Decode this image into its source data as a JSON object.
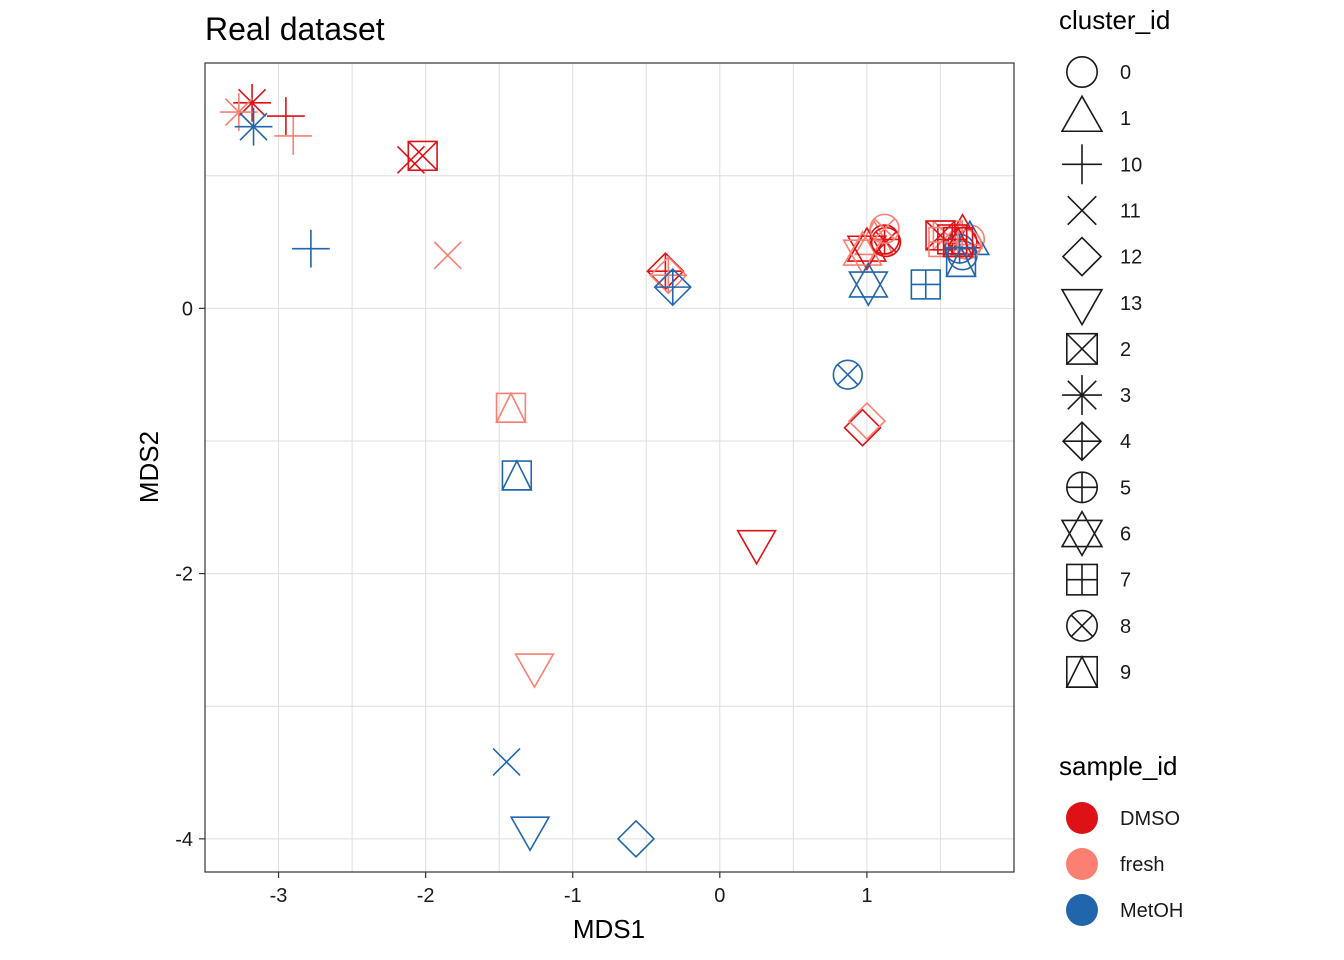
{
  "colors": {
    "DMSO": "#DE1116",
    "fresh": "#FB8072",
    "MetOH": "#2166AC",
    "legend_shape": "#1a1a1a",
    "panel_border": "#333333",
    "grid": "#dedede"
  },
  "chart_data": {
    "type": "scatter",
    "title": "Real dataset",
    "xlabel": "MDS1",
    "ylabel": "MDS2",
    "xlim": [
      -3.5,
      2.0
    ],
    "ylim": [
      -4.25,
      1.85
    ],
    "xticks": [
      -3,
      -2,
      -1,
      0,
      1
    ],
    "yticks": [
      0,
      -2,
      -4
    ],
    "xtick_labels": [
      "-3",
      "-2",
      "-1",
      "0",
      "1"
    ],
    "ytick_labels": [
      "0",
      "-2",
      "-4"
    ],
    "grid": true,
    "legend_shape": {
      "title": "cluster_id",
      "entries": [
        {
          "label": "0",
          "shape": "circle"
        },
        {
          "label": "1",
          "shape": "triangle"
        },
        {
          "label": "10",
          "shape": "plus"
        },
        {
          "label": "11",
          "shape": "cross"
        },
        {
          "label": "12",
          "shape": "diamond"
        },
        {
          "label": "13",
          "shape": "triangle-down"
        },
        {
          "label": "2",
          "shape": "square-cross"
        },
        {
          "label": "3",
          "shape": "asterisk"
        },
        {
          "label": "4",
          "shape": "diamond-plus"
        },
        {
          "label": "5",
          "shape": "circle-plus"
        },
        {
          "label": "6",
          "shape": "star-of-david"
        },
        {
          "label": "7",
          "shape": "square-plus"
        },
        {
          "label": "8",
          "shape": "circle-cross"
        },
        {
          "label": "9",
          "shape": "square-triangle"
        }
      ]
    },
    "legend_color": {
      "title": "sample_id",
      "entries": [
        {
          "label": "DMSO",
          "color": "#DE1116"
        },
        {
          "label": "fresh",
          "color": "#FB8072"
        },
        {
          "label": "MetOH",
          "color": "#2166AC"
        }
      ]
    },
    "points": [
      {
        "x": 1.65,
        "y": 0.5,
        "cluster": "0",
        "sample": "DMSO"
      },
      {
        "x": 1.7,
        "y": 0.52,
        "cluster": "0",
        "sample": "fresh"
      },
      {
        "x": 1.65,
        "y": 0.4,
        "cluster": "0",
        "sample": "MetOH"
      },
      {
        "x": 1.65,
        "y": 0.55,
        "cluster": "1",
        "sample": "DMSO"
      },
      {
        "x": 1.05,
        "y": 0.5,
        "cluster": "1",
        "sample": "fresh"
      },
      {
        "x": 1.7,
        "y": 0.5,
        "cluster": "1",
        "sample": "MetOH"
      },
      {
        "x": -2.95,
        "y": 1.45,
        "cluster": "10",
        "sample": "DMSO"
      },
      {
        "x": -2.9,
        "y": 1.3,
        "cluster": "10",
        "sample": "fresh"
      },
      {
        "x": -2.78,
        "y": 0.45,
        "cluster": "10",
        "sample": "MetOH"
      },
      {
        "x": -2.1,
        "y": 1.12,
        "cluster": "11",
        "sample": "DMSO"
      },
      {
        "x": -1.85,
        "y": 0.4,
        "cluster": "11",
        "sample": "fresh"
      },
      {
        "x": -1.45,
        "y": -3.42,
        "cluster": "11",
        "sample": "MetOH"
      },
      {
        "x": 0.97,
        "y": -0.9,
        "cluster": "12",
        "sample": "DMSO"
      },
      {
        "x": 1.0,
        "y": -0.85,
        "cluster": "12",
        "sample": "fresh"
      },
      {
        "x": -0.57,
        "y": -4.0,
        "cluster": "12",
        "sample": "MetOH"
      },
      {
        "x": 0.25,
        "y": -1.77,
        "cluster": "13",
        "sample": "DMSO"
      },
      {
        "x": -1.26,
        "y": -2.7,
        "cluster": "13",
        "sample": "fresh"
      },
      {
        "x": -1.29,
        "y": -3.93,
        "cluster": "13",
        "sample": "MetOH"
      },
      {
        "x": -2.02,
        "y": 1.15,
        "cluster": "2",
        "sample": "DMSO"
      },
      {
        "x": 1.55,
        "y": 0.55,
        "cluster": "2",
        "sample": "fresh"
      },
      {
        "x": 1.5,
        "y": 0.55,
        "cluster": "2",
        "sample": "DMSO"
      },
      {
        "x": -3.18,
        "y": 1.55,
        "cluster": "3",
        "sample": "DMSO"
      },
      {
        "x": -3.27,
        "y": 1.48,
        "cluster": "3",
        "sample": "fresh"
      },
      {
        "x": -3.17,
        "y": 1.37,
        "cluster": "3",
        "sample": "MetOH"
      },
      {
        "x": -0.37,
        "y": 0.28,
        "cluster": "4",
        "sample": "DMSO"
      },
      {
        "x": -0.35,
        "y": 0.25,
        "cluster": "4",
        "sample": "fresh"
      },
      {
        "x": -0.32,
        "y": 0.16,
        "cluster": "4",
        "sample": "MetOH"
      },
      {
        "x": 1.12,
        "y": 0.52,
        "cluster": "5",
        "sample": "DMSO"
      },
      {
        "x": 1.68,
        "y": 0.48,
        "cluster": "5",
        "sample": "fresh"
      },
      {
        "x": 1.63,
        "y": 0.45,
        "cluster": "5",
        "sample": "MetOH"
      },
      {
        "x": 1.0,
        "y": 0.45,
        "cluster": "6",
        "sample": "DMSO"
      },
      {
        "x": 0.97,
        "y": 0.42,
        "cluster": "6",
        "sample": "fresh"
      },
      {
        "x": 1.01,
        "y": 0.18,
        "cluster": "6",
        "sample": "MetOH"
      },
      {
        "x": 1.58,
        "y": 0.52,
        "cluster": "7",
        "sample": "DMSO"
      },
      {
        "x": 1.52,
        "y": 0.5,
        "cluster": "7",
        "sample": "fresh"
      },
      {
        "x": 1.4,
        "y": 0.18,
        "cluster": "7",
        "sample": "MetOH"
      },
      {
        "x": 1.13,
        "y": 0.5,
        "cluster": "8",
        "sample": "DMSO"
      },
      {
        "x": 1.12,
        "y": 0.6,
        "cluster": "8",
        "sample": "fresh"
      },
      {
        "x": 0.87,
        "y": -0.5,
        "cluster": "8",
        "sample": "MetOH"
      },
      {
        "x": 1.62,
        "y": 0.5,
        "cluster": "9",
        "sample": "DMSO"
      },
      {
        "x": -1.42,
        "y": -0.75,
        "cluster": "9",
        "sample": "fresh"
      },
      {
        "x": -1.38,
        "y": -1.26,
        "cluster": "9",
        "sample": "MetOH"
      },
      {
        "x": 1.64,
        "y": 0.35,
        "cluster": "9",
        "sample": "MetOH"
      }
    ]
  }
}
